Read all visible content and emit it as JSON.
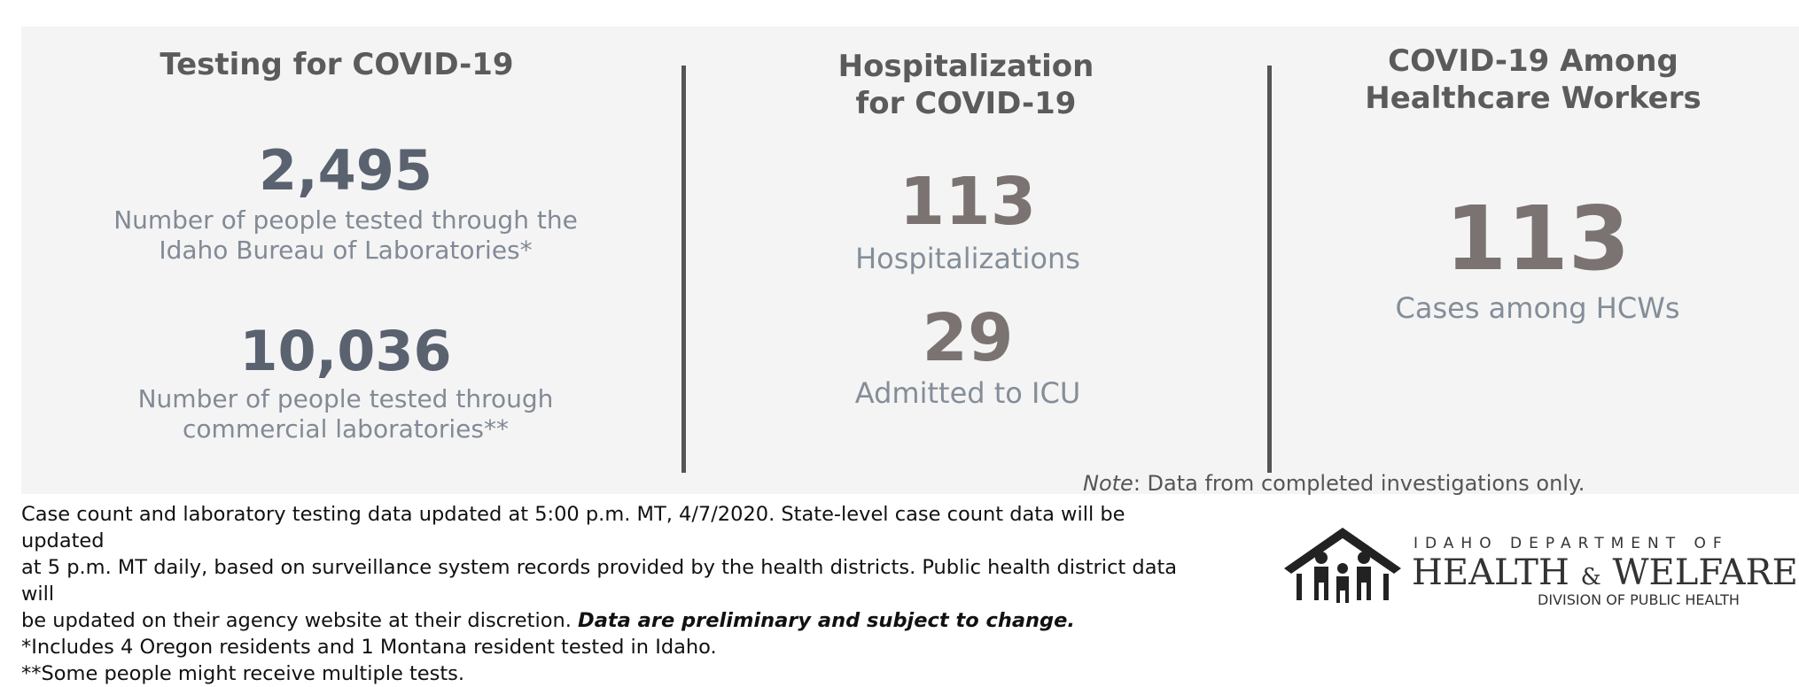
{
  "testing": {
    "heading": "Testing for COVID-19",
    "bureau_count": "2,495",
    "bureau_desc_line1": "Number of people tested through the",
    "bureau_desc_line2": "Idaho Bureau of Laboratories*",
    "commercial_count": "10,036",
    "commercial_desc_line1": "Number of people tested through",
    "commercial_desc_line2": "commercial laboratories**"
  },
  "hospitalization": {
    "heading_line1": "Hospitalization",
    "heading_line2": "for COVID-19",
    "hosp_count": "113",
    "hosp_label": "Hospitalizations",
    "icu_count": "29",
    "icu_label": "Admitted to ICU"
  },
  "hcw": {
    "heading_line1": "COVID-19 Among",
    "heading_line2": "Healthcare Workers",
    "count": "113",
    "label": "Cases among HCWs"
  },
  "note": {
    "prefix": "Note",
    "text": ": Data from completed investigations only."
  },
  "footer": {
    "line1": "Case count and laboratory testing data updated at 5:00 p.m. MT, 4/7/2020. State-level case count data will be updated",
    "line2": "at 5 p.m. MT daily, based on surveillance system records provided by the health districts. Public health district data will",
    "line3_plain": "be updated on their agency website at their discretion. ",
    "line3_bold": "Data are preliminary and subject to change.",
    "line4": "*Includes 4 Oregon residents and 1 Montana resident tested in Idaho.",
    "line5": "**Some people might receive multiple tests."
  },
  "logo": {
    "top": "IDAHO DEPARTMENT OF",
    "mid_left": "HEALTH",
    "mid_amp": "&",
    "mid_right": "WELFARE",
    "bottom": "DIVISION OF PUBLIC HEALTH"
  },
  "colors": {
    "panel": "#f4f4f4",
    "divider": "#555555",
    "big_number_cool": "#5a6270",
    "big_number_warm": "#7a7372"
  }
}
